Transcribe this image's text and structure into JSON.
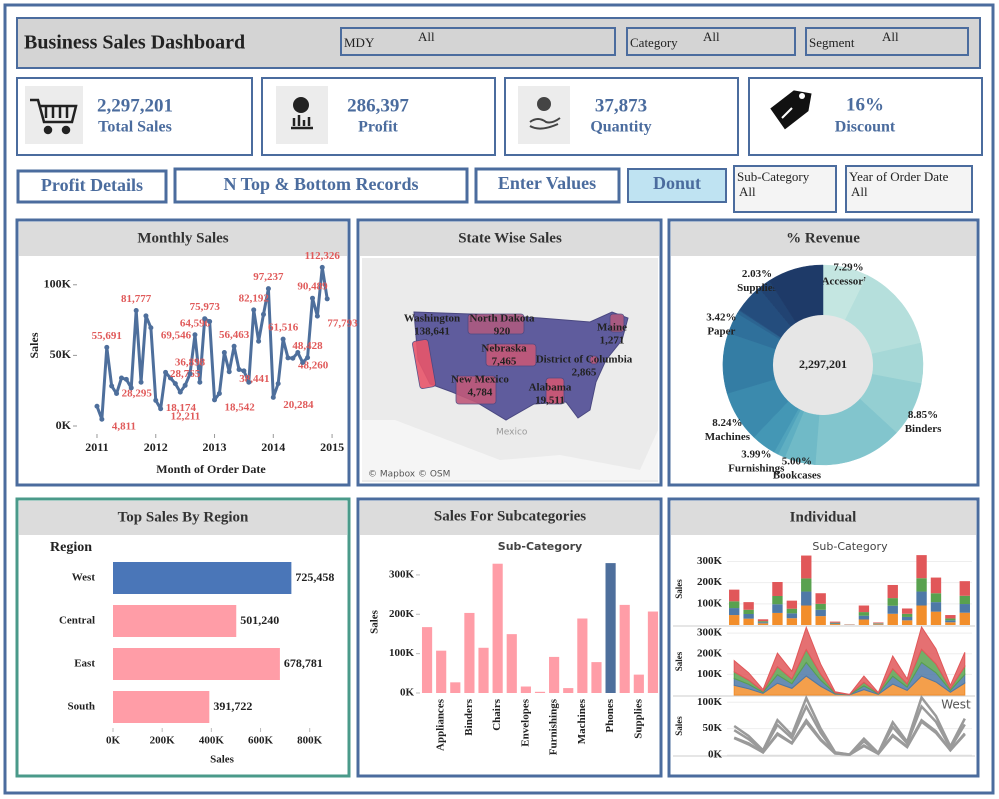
{
  "header": {
    "title": "Business Sales Dashboard",
    "filters": [
      {
        "label": "MDY",
        "value": "All"
      },
      {
        "label": "Category",
        "value": "All"
      },
      {
        "label": "Segment",
        "value": "All"
      }
    ]
  },
  "kpis": [
    {
      "value": "2,297,201",
      "label": "Total Sales"
    },
    {
      "value": "286,397",
      "label": "Profit"
    },
    {
      "value": "37,873",
      "label": "Quantity"
    },
    {
      "value": "16%",
      "label": "Discount"
    }
  ],
  "buttons": [
    "Profit Details",
    "N Top & Bottom Records",
    "Enter Values",
    "Donut"
  ],
  "side_filters": [
    {
      "label": "Sub-Category",
      "value": "All"
    },
    {
      "label": "Year of Order Date",
      "value": "All"
    }
  ],
  "chart_data": [
    {
      "type": "line",
      "title": "Monthly Sales",
      "x_label": "Month of Order Date",
      "y_label": "Sales",
      "x": [
        2011,
        2011.083,
        2011.167,
        2011.25,
        2011.333,
        2011.417,
        2011.5,
        2011.583,
        2011.667,
        2011.75,
        2011.833,
        2011.917,
        2012,
        2012.083,
        2012.167,
        2012.25,
        2012.333,
        2012.417,
        2012.5,
        2012.583,
        2012.667,
        2012.75,
        2012.833,
        2012.917,
        2013,
        2013.083,
        2013.167,
        2013.25,
        2013.333,
        2013.417,
        2013.5,
        2013.583,
        2013.667,
        2013.75,
        2013.833,
        2013.917,
        2014,
        2014.083,
        2014.167,
        2014.25,
        2014.333,
        2014.417,
        2014.5,
        2014.583,
        2014.667,
        2014.75,
        2014.833,
        2014.917
      ],
      "values": [
        14000,
        4811,
        55691,
        28295,
        23000,
        34000,
        33000,
        27000,
        81777,
        31000,
        78000,
        69546,
        18174,
        12211,
        38000,
        34000,
        30000,
        24000,
        28765,
        36898,
        64596,
        31000,
        75973,
        74000,
        18542,
        23000,
        52000,
        38441,
        56463,
        40000,
        39000,
        31000,
        82192,
        60000,
        79000,
        97237,
        20284,
        30000,
        61516,
        48260,
        48000,
        52000,
        45000,
        48428,
        90489,
        77793,
        112326,
        90000
      ],
      "value_labels": [
        null,
        "4,811",
        "55,691",
        "28,295",
        null,
        null,
        null,
        null,
        "81,777",
        null,
        null,
        "69,546",
        "18,174",
        "12,211",
        null,
        null,
        null,
        null,
        "28,765",
        "36,898",
        "64,596",
        null,
        "75,973",
        null,
        "18,542",
        null,
        null,
        "38,441",
        "56,463",
        null,
        null,
        null,
        "82,192",
        null,
        null,
        "97,237",
        "20,284",
        null,
        "61,516",
        "48,260",
        null,
        null,
        null,
        "48,428",
        "90,489",
        "77,793",
        "112,326",
        null
      ],
      "color": "#4e6f9c",
      "label_color": "#e05a5a",
      "xlim": [
        2010.66,
        2015.22
      ],
      "xticks": [
        2011,
        2012,
        2013,
        2014,
        2015
      ],
      "ylim": [
        0,
        114000
      ],
      "yticks": [
        {
          "value": 0,
          "label": "0K"
        },
        {
          "value": 50000,
          "label": "50K"
        },
        {
          "value": 100000,
          "label": "100K"
        }
      ]
    },
    {
      "type": "map",
      "title": "State Wise Sales",
      "regions": [
        "Washington",
        "North Dakota",
        "Nebraska",
        "Maine",
        "District of Columbia",
        "New Mexico",
        "Alabama"
      ],
      "values": [
        138641,
        920,
        7465,
        1271,
        2865,
        4784,
        19511
      ],
      "value_labels": [
        "138,641",
        "920",
        "7,465",
        "1,271",
        "2,865",
        "4,784",
        "19,511"
      ],
      "color_range": [
        "#5d5f9e",
        "#e8566b"
      ],
      "annotations": [
        "Mexico",
        "© Mapbox © OSM"
      ]
    },
    {
      "type": "donut",
      "title": "% Revenue",
      "center_label": "2,297,201",
      "categories": [
        "Accessories",
        null,
        null,
        "Binders",
        null,
        "Bookcases",
        null,
        null,
        "Furnishings",
        "Machines",
        null,
        "Paper",
        null,
        null,
        null,
        "Supplies",
        null
      ],
      "values": [
        7.29,
        14.16,
        6.5,
        8.85,
        14.37,
        5.0,
        1.18,
        0.72,
        3.99,
        8.24,
        9.78,
        3.42,
        0.54,
        0.13,
        4.66,
        2.03,
        9.0
      ],
      "value_labels": [
        "7.29%",
        null,
        null,
        "8.85%",
        null,
        "5.00%",
        null,
        null,
        "3.99%",
        "8.24%",
        null,
        "3.42%",
        null,
        null,
        null,
        "2.03%",
        null
      ],
      "colors": [
        "#c4e6e1",
        "#b5dfdc",
        "#a6d8d7",
        "#94cfd2",
        "#82c5cd",
        "#70bac7",
        "#5fafc2",
        "#50a3bc",
        "#4497b5",
        "#3b8aad",
        "#347da4",
        "#2f709b",
        "#2b6491",
        "#285887",
        "#244d7d",
        "#214372",
        "#1e3a68"
      ]
    },
    {
      "type": "hbar",
      "title": "Top Sales By Region",
      "y_label": "Region",
      "x_label": "Sales",
      "categories": [
        "West",
        "Central",
        "East",
        "South"
      ],
      "values": [
        725458,
        501240,
        678781,
        391722
      ],
      "value_labels": [
        "725,458",
        "501,240",
        "678,781",
        "391,722"
      ],
      "colors": [
        "#4a76b8",
        "#ff9da7",
        "#ff9da7",
        "#ff9da7"
      ],
      "xlim": [
        0,
        850000
      ],
      "xticks": [
        {
          "value": 0,
          "label": "0K"
        },
        {
          "value": 200000,
          "label": "200K"
        },
        {
          "value": 400000,
          "label": "400K"
        },
        {
          "value": 600000,
          "label": "600K"
        },
        {
          "value": 800000,
          "label": "800K"
        }
      ]
    },
    {
      "type": "bar",
      "title": "Sales For Subcategories",
      "subtitle": "Sub-Category",
      "y_label": "Sales",
      "categories": [
        null,
        "Appliances",
        null,
        "Binders",
        null,
        "Chairs",
        null,
        "Envelopes",
        null,
        "Furnishings",
        null,
        "Machines",
        null,
        "Phones",
        null,
        "Supplies",
        null
      ],
      "values": [
        167380,
        107532,
        27119,
        203413,
        114880,
        328449,
        149528,
        16476,
        3024,
        91705,
        12486,
        189239,
        78479,
        330007,
        223844,
        46674,
        206966
      ],
      "colors": [
        "#ff9da7",
        "#ff9da7",
        "#ff9da7",
        "#ff9da7",
        "#ff9da7",
        "#ff9da7",
        "#ff9da7",
        "#ff9da7",
        "#ff9da7",
        "#ff9da7",
        "#ff9da7",
        "#ff9da7",
        "#ff9da7",
        "#4e6f9c",
        "#ff9da7",
        "#ff9da7",
        "#ff9da7"
      ],
      "ylim": [
        0,
        376000
      ],
      "yticks": [
        {
          "value": 0,
          "label": "0K"
        },
        {
          "value": 100000,
          "label": "100K"
        },
        {
          "value": 200000,
          "label": "200K"
        },
        {
          "value": 300000,
          "label": "300K"
        }
      ]
    },
    {
      "type": "small-multiples",
      "title": "Individual",
      "subtitle": "Sub-Category",
      "y_label": "Sales",
      "annotation": "West",
      "series": [
        {
          "color": "#f28e2b",
          "values": [
            47000,
            30000,
            8000,
            57000,
            32000,
            92000,
            42000,
            4500,
            800,
            26000,
            3400,
            53000,
            22000,
            92000,
            63000,
            13000,
            58000
          ]
        },
        {
          "color": "#4e79a7",
          "values": [
            33000,
            22000,
            5000,
            41000,
            23000,
            66000,
            30000,
            3300,
            600,
            18000,
            2500,
            38000,
            16000,
            66000,
            45000,
            9000,
            41000
          ]
        },
        {
          "color": "#59a14f",
          "values": [
            32000,
            20000,
            5000,
            39000,
            22000,
            62000,
            28000,
            3100,
            600,
            17000,
            2400,
            36000,
            15000,
            63000,
            42000,
            9000,
            39000
          ]
        },
        {
          "color": "#e15759",
          "values": [
            55000,
            36000,
            9000,
            66000,
            38000,
            108000,
            50000,
            5100,
            1000,
            31000,
            3700,
            62000,
            25000,
            109000,
            74000,
            16000,
            69000
          ]
        }
      ],
      "panels": [
        {
          "type": "stacked-bar",
          "ylim": [
            0,
            340000
          ],
          "yticks": [
            {
              "value": 100000,
              "label": "100K"
            },
            {
              "value": 200000,
              "label": "200K"
            },
            {
              "value": 300000,
              "label": "300K"
            }
          ]
        },
        {
          "type": "stacked-area",
          "ylim": [
            0,
            325000
          ],
          "yticks": [
            {
              "value": 100000,
              "label": "100K"
            },
            {
              "value": 200000,
              "label": "200K"
            },
            {
              "value": 300000,
              "label": "300K"
            }
          ]
        },
        {
          "type": "line",
          "color": "#9a9a9a",
          "ylim": [
            0,
            110000
          ],
          "yticks": [
            {
              "value": 0,
              "label": "0K"
            },
            {
              "value": 50000,
              "label": "50K"
            },
            {
              "value": 100000,
              "label": "100K"
            }
          ]
        }
      ]
    }
  ]
}
